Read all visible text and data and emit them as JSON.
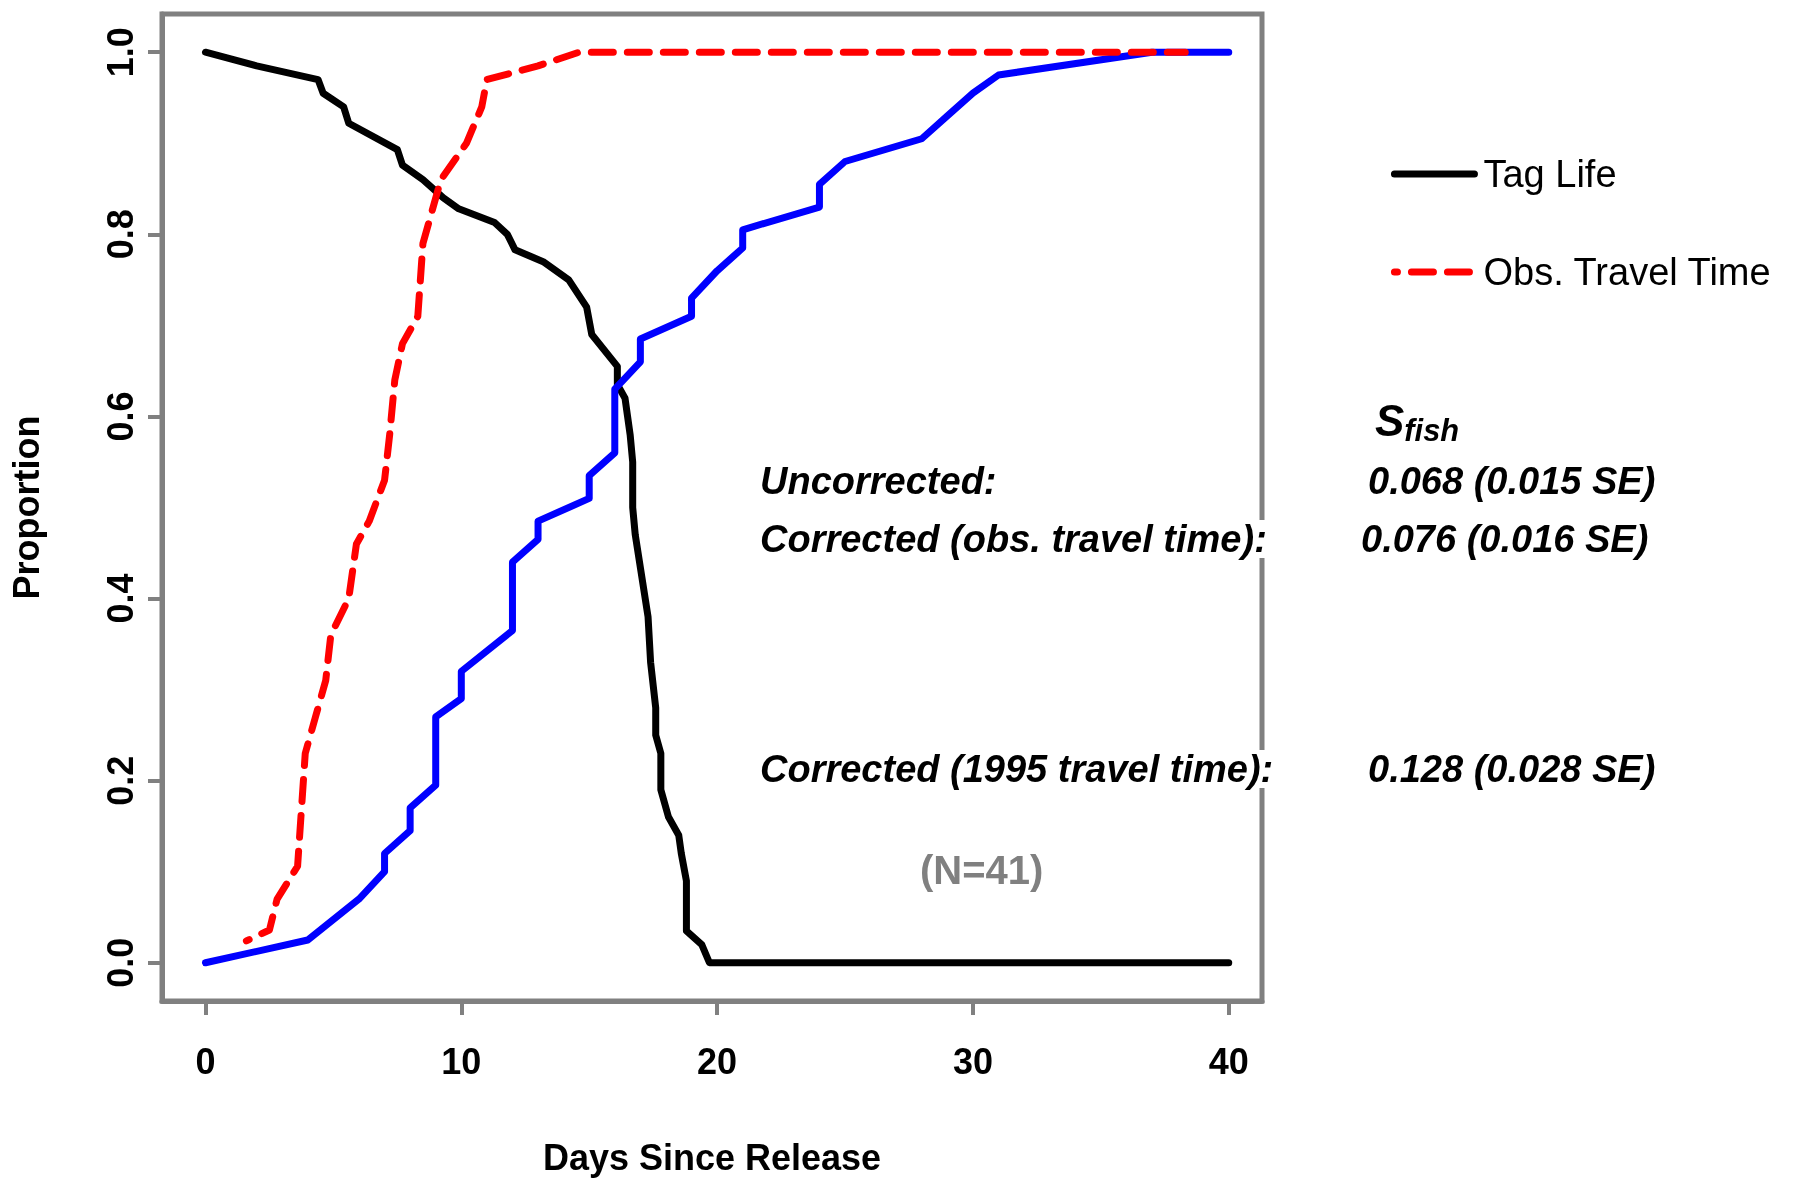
{
  "chart_data": {
    "type": "line",
    "xlabel": "Days Since Release",
    "ylabel": "Proportion",
    "xlim": [
      -1.7,
      41.3
    ],
    "ylim": [
      -0.042,
      1.042
    ],
    "xticks": [
      0,
      10,
      20,
      30,
      40
    ],
    "yticks": [
      {
        "value": 0,
        "label": "0.0"
      },
      {
        "value": 0.2,
        "label": "0.2"
      },
      {
        "value": 0.4,
        "label": "0.4"
      },
      {
        "value": 0.6,
        "label": "0.6"
      },
      {
        "value": 0.8,
        "label": "0.8"
      },
      {
        "value": 1,
        "label": "1.0"
      }
    ],
    "grid": false,
    "legend": "right",
    "marker": "none",
    "series": [
      {
        "name": "Tag Life",
        "color": "#000000",
        "line_style": "solid",
        "x": [
          0,
          2,
          4.4,
          4.6,
          5.4,
          5.6,
          7.5,
          7.7,
          8.5,
          9.3,
          9.9,
          11.3,
          11.8,
          12.1,
          13.2,
          14.2,
          14.9,
          15.1,
          16.1,
          16.1,
          16.4,
          16.5,
          16.6,
          16.7,
          16.7,
          16.8,
          17.3,
          17.4,
          17.6,
          17.6,
          17.8,
          17.8,
          18.1,
          18.5,
          18.6,
          18.8,
          18.8,
          19.4,
          19.7,
          40
        ],
        "values": [
          1.0,
          0.985,
          0.97,
          0.955,
          0.94,
          0.922,
          0.893,
          0.876,
          0.86,
          0.84,
          0.828,
          0.813,
          0.8,
          0.783,
          0.77,
          0.75,
          0.72,
          0.69,
          0.655,
          0.635,
          0.62,
          0.6,
          0.58,
          0.55,
          0.5,
          0.47,
          0.38,
          0.33,
          0.28,
          0.25,
          0.23,
          0.19,
          0.16,
          0.14,
          0.12,
          0.09,
          0.035,
          0.02,
          0.0,
          0.0
        ]
      },
      {
        "name": "Obs. Travel Time",
        "color": "#ff0000",
        "line_style": "dashed",
        "x": [
          1.6,
          2.5,
          2.8,
          3.6,
          3.9,
          4.3,
          4.7,
          4.9,
          5.6,
          5.9,
          6.4,
          7.0,
          7.2,
          7.4,
          7.7,
          8.3,
          8.5,
          9.2,
          10.2,
          10.8,
          11.0,
          13.0,
          14.6,
          38.3
        ],
        "values": [
          0.024,
          0.036,
          0.07,
          0.106,
          0.23,
          0.27,
          0.31,
          0.36,
          0.4,
          0.46,
          0.485,
          0.53,
          0.58,
          0.64,
          0.68,
          0.71,
          0.79,
          0.86,
          0.9,
          0.94,
          0.97,
          0.985,
          1.0,
          1.0
        ]
      },
      {
        "color": "#0000ff",
        "line_style": "solid",
        "x": [
          0,
          4,
          6,
          7,
          7,
          8,
          8,
          9,
          9,
          10,
          10,
          12,
          12,
          13,
          13,
          15,
          15,
          16,
          16,
          17,
          17,
          19,
          19,
          20,
          21,
          21,
          24,
          24,
          25,
          28,
          29,
          30,
          31,
          37,
          40
        ],
        "values": [
          0,
          0.025,
          0.07,
          0.1,
          0.12,
          0.145,
          0.17,
          0.195,
          0.27,
          0.29,
          0.32,
          0.365,
          0.44,
          0.465,
          0.485,
          0.51,
          0.535,
          0.56,
          0.63,
          0.66,
          0.685,
          0.71,
          0.73,
          0.76,
          0.785,
          0.805,
          0.83,
          0.855,
          0.88,
          0.905,
          0.93,
          0.955,
          0.975,
          1.0,
          1.0
        ]
      }
    ],
    "annotations": [
      "S$_{fish}$",
      "Uncorrected:",
      "0.068 (0.015 SE)",
      "Corrected (obs. travel time):",
      "0.076 (0.016 SE)",
      "Corrected (1995 travel time):",
      "0.128 (0.028 SE)",
      "(N=41)"
    ]
  }
}
